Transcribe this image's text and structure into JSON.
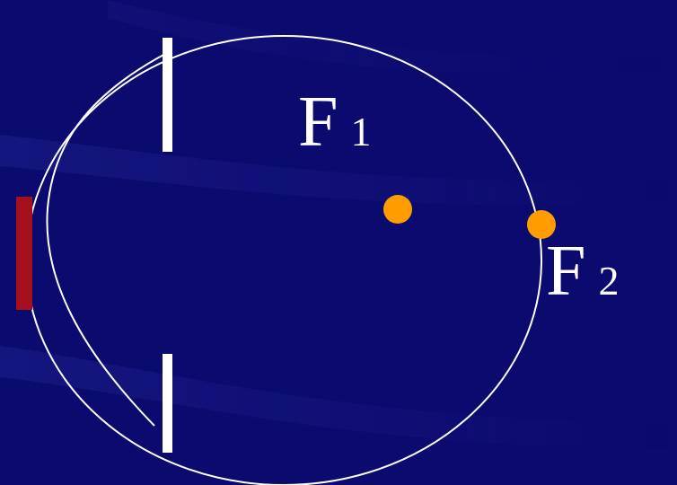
{
  "colors": {
    "background": "#0b0a6e",
    "outline": "#ffffff",
    "focus_point": "#ff9d00",
    "retina_bar": "#a50f1e"
  },
  "labels": {
    "f1_main": "F",
    "f1_sub": "1",
    "f2_main": "F",
    "f2_sub": "2"
  }
}
